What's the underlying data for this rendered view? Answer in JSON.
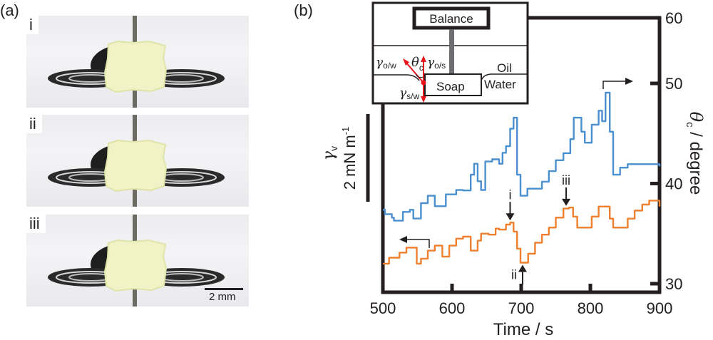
{
  "panel_a": {
    "label": "(a)",
    "frames": [
      {
        "tag": "i"
      },
      {
        "tag": "ii"
      },
      {
        "tag": "iii"
      }
    ],
    "scale_bar_label": "2 mm"
  },
  "panel_b": {
    "label": "(b)",
    "inset": {
      "balance": "Balance",
      "soap": "Soap",
      "oil": "Oil",
      "water": "Water",
      "gamma_ow": "γ",
      "gamma_ow_sub": "o/w",
      "gamma_os": "γ",
      "gamma_os_sub": "o/s",
      "gamma_sw": "γ",
      "gamma_sw_sub": "s/w",
      "theta": "θ",
      "theta_sub": "c",
      "arrow_color": "#e8141c"
    },
    "left_scale": {
      "symbol": "γ",
      "symbol_sub": "v",
      "label": "2 mN m",
      "label_sup": "-1",
      "bar_value_mN_per_m": 2
    },
    "annotations": [
      "i",
      "ii",
      "iii"
    ]
  },
  "chart_data": {
    "type": "line",
    "xlabel": "Time / s",
    "ylabel_right": "θc / degree",
    "ylabel_right_symbol": "θ",
    "ylabel_right_sub": "c",
    "ylabel_right_unit": " / degree",
    "xlim": [
      500,
      900
    ],
    "x_ticks": [
      "500",
      "600",
      "700",
      "800",
      "900"
    ],
    "x_tick_values": [
      500,
      600,
      700,
      800,
      900
    ],
    "y_ticks_right": [
      "60",
      "50",
      "40",
      "30"
    ],
    "y_tick_values_right": [
      60,
      50,
      40,
      30
    ],
    "ylim_right": [
      30,
      60
    ],
    "grid": false,
    "series": [
      {
        "name": "γv",
        "axis": "left (relative, mN/m)",
        "color": "#4a8fd0",
        "x": [
          500,
          503,
          513,
          516,
          529,
          539,
          544,
          555,
          565,
          575,
          591,
          606,
          616,
          627,
          632,
          637,
          642,
          648,
          658,
          668,
          673,
          678,
          684,
          689,
          694,
          699,
          709,
          730,
          740,
          750,
          761,
          771,
          776,
          787,
          792,
          802,
          812,
          817,
          822,
          828,
          833,
          843,
          854,
          900
        ],
        "values": [
          0.5,
          0.4,
          0.32,
          0.25,
          0.45,
          0.5,
          0.3,
          0.65,
          0.82,
          0.58,
          0.85,
          0.95,
          0.94,
          1.3,
          1.55,
          1.15,
          0.95,
          1.6,
          1.65,
          1.55,
          1.8,
          1.95,
          2.35,
          2.6,
          1.3,
          0.82,
          0.98,
          1.14,
          1.38,
          1.63,
          1.79,
          2.11,
          2.6,
          2.28,
          2.03,
          2.44,
          2.76,
          2.52,
          3.17,
          2.28,
          1.3,
          1.46,
          1.54,
          1.49
        ]
      },
      {
        "name": "θc",
        "axis": "right (degree)",
        "color": "#ef7f2d",
        "x": [
          500,
          509,
          524,
          534,
          539,
          549,
          555,
          565,
          575,
          586,
          596,
          606,
          616,
          627,
          637,
          642,
          653,
          663,
          668,
          678,
          684,
          689,
          694,
          699,
          704,
          710,
          720,
          730,
          740,
          750,
          761,
          769,
          775,
          781,
          792,
          802,
          812,
          822,
          828,
          833,
          843,
          854,
          864,
          875,
          885,
          895,
          900
        ],
        "values": [
          32.0,
          32.6,
          33.1,
          33.6,
          33.6,
          32.0,
          32.5,
          33.3,
          33.8,
          32.7,
          33.8,
          34.5,
          34.7,
          33.3,
          34.3,
          35.0,
          34.9,
          35.5,
          35.4,
          35.9,
          36.1,
          35.2,
          33.5,
          32.1,
          32.1,
          33.0,
          34.1,
          34.9,
          35.6,
          36.6,
          37.5,
          37.6,
          36.7,
          35.6,
          35.6,
          36.7,
          37.7,
          37.7,
          36.5,
          35.6,
          35.6,
          36.5,
          37.3,
          37.9,
          38.3,
          38.3,
          37.7
        ]
      }
    ],
    "annotations": [
      {
        "label": "i",
        "time": 684,
        "series": "θc",
        "direction": "down"
      },
      {
        "label": "ii",
        "time": 702,
        "series": "θc",
        "direction": "up"
      },
      {
        "label": "iii",
        "time": 765,
        "series": "θc",
        "direction": "down"
      }
    ]
  }
}
